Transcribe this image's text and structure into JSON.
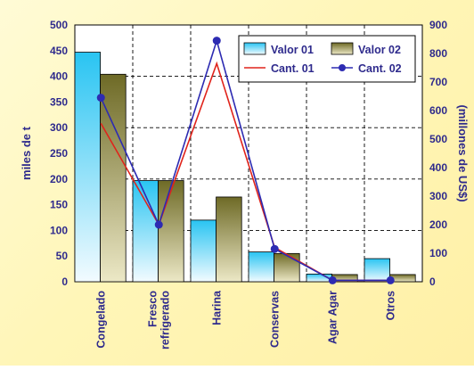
{
  "chart_data": {
    "type": "bar",
    "categories": [
      "Congelado",
      "Fresco refrigerado",
      "Harina",
      "Conservas",
      "Agar Agar",
      "Otros"
    ],
    "category_lines": [
      [
        "Congelado"
      ],
      [
        "Fresco",
        "refrigerado"
      ],
      [
        "Harina"
      ],
      [
        "Conservas"
      ],
      [
        "Agar Agar"
      ],
      [
        "Otros"
      ]
    ],
    "left_axis": {
      "label": "miles de t",
      "ylim": [
        0,
        500
      ],
      "ticks": [
        0,
        50,
        100,
        150,
        200,
        250,
        300,
        350,
        400,
        450,
        500
      ]
    },
    "right_axis": {
      "label": "(millones de US$)",
      "ylim": [
        0,
        900
      ],
      "ticks": [
        0,
        100,
        200,
        300,
        400,
        500,
        600,
        700,
        800,
        900
      ]
    },
    "series": [
      {
        "name": "Valor 01",
        "type": "bar",
        "axis": "left",
        "values": [
          447,
          197,
          120,
          58,
          15,
          45
        ]
      },
      {
        "name": "Valor 02",
        "type": "bar",
        "axis": "left",
        "values": [
          404,
          197,
          165,
          55,
          14,
          14
        ]
      },
      {
        "name": "Cant. 01",
        "type": "line",
        "axis": "right",
        "values": [
          555,
          200,
          765,
          120,
          5,
          5
        ]
      },
      {
        "name": "Cant. 02",
        "type": "line",
        "axis": "right",
        "values": [
          645,
          200,
          845,
          115,
          5,
          5
        ]
      }
    ],
    "grid": true,
    "legend_position": "top-right",
    "colors": {
      "bar1_top": "#29c4f2",
      "bar1_bottom": "#f2fbff",
      "bar2_top": "#6e6a26",
      "bar2_bottom": "#ece8c6",
      "cant01": "#e0231b",
      "cant02": "#2d2bb2",
      "text": "#2e2a8c"
    }
  }
}
